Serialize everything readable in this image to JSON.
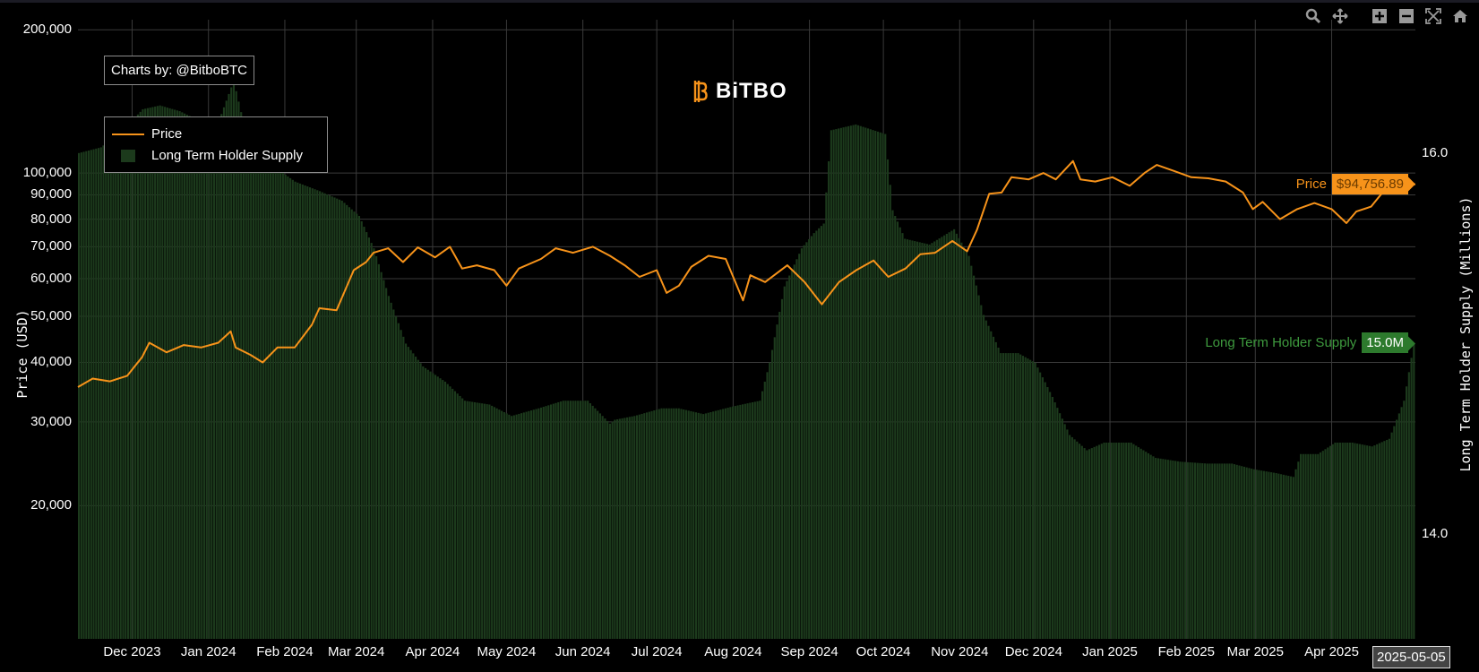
{
  "toolbar": {
    "icons": [
      "zoom-icon",
      "pan-icon",
      "zoom-in-icon",
      "zoom-out-icon",
      "autoscale-icon",
      "reset-axes-icon"
    ]
  },
  "credit": "Charts by: @BitboBTC",
  "brand": {
    "name": "BiTBO"
  },
  "legend": {
    "price": "Price",
    "lths": "Long Term Holder Supply"
  },
  "hover": {
    "price_label": "Price",
    "price_value": "$94,756.89",
    "lths_label": "Long Term Holder Supply",
    "lths_value": "15.0M",
    "date": "2025-05-05"
  },
  "colors": {
    "price": "#f7931a",
    "lths": "#1c3a1c",
    "grid": "#3a3a3a",
    "background": "#000000"
  },
  "chart_data": {
    "type": "line",
    "xlabel": "",
    "ylabel": "Price (USD)",
    "y2label": "Long Term Holder Supply (Millions)",
    "yscale": "log",
    "ylim": [
      10500,
      210000
    ],
    "y2lim": [
      13.45,
      16.7
    ],
    "grid": true,
    "legend_position": "top-left",
    "x_ticks": [
      "Dec 2023",
      "Jan 2024",
      "Feb 2024",
      "Mar 2024",
      "Apr 2024",
      "May 2024",
      "Jun 2024",
      "Jul 2024",
      "Aug 2024",
      "Sep 2024",
      "Oct 2024",
      "Nov 2024",
      "Dec 2024",
      "Jan 2025",
      "Feb 2025",
      "Mar 2025",
      "Apr 2025"
    ],
    "y_ticks": [
      "200,000",
      "100,000",
      "90,000",
      "80,000",
      "70,000",
      "60,000",
      "50,000",
      "40,000",
      "30,000",
      "20,000"
    ],
    "y2_ticks": [
      "16.0",
      "14.0"
    ],
    "x_range": [
      "2023-11-09",
      "2025-05-05"
    ],
    "series": [
      {
        "name": "Price",
        "kind": "line",
        "axis": "left",
        "x": [
          "2023-11-09",
          "2023-11-15",
          "2023-11-22",
          "2023-11-29",
          "2023-12-05",
          "2023-12-08",
          "2023-12-15",
          "2023-12-22",
          "2023-12-29",
          "2024-01-05",
          "2024-01-10",
          "2024-01-12",
          "2024-01-18",
          "2024-01-23",
          "2024-01-29",
          "2024-02-05",
          "2024-02-12",
          "2024-02-15",
          "2024-02-22",
          "2024-02-29",
          "2024-03-05",
          "2024-03-08",
          "2024-03-14",
          "2024-03-20",
          "2024-03-26",
          "2024-04-02",
          "2024-04-08",
          "2024-04-13",
          "2024-04-19",
          "2024-04-26",
          "2024-05-01",
          "2024-05-06",
          "2024-05-15",
          "2024-05-21",
          "2024-05-28",
          "2024-06-05",
          "2024-06-12",
          "2024-06-18",
          "2024-06-24",
          "2024-07-01",
          "2024-07-05",
          "2024-07-10",
          "2024-07-15",
          "2024-07-22",
          "2024-07-29",
          "2024-08-05",
          "2024-08-08",
          "2024-08-14",
          "2024-08-23",
          "2024-08-30",
          "2024-09-06",
          "2024-09-13",
          "2024-09-20",
          "2024-09-27",
          "2024-10-03",
          "2024-10-10",
          "2024-10-16",
          "2024-10-22",
          "2024-10-29",
          "2024-11-04",
          "2024-11-08",
          "2024-11-13",
          "2024-11-18",
          "2024-11-22",
          "2024-11-29",
          "2024-12-05",
          "2024-12-10",
          "2024-12-17",
          "2024-12-20",
          "2024-12-26",
          "2025-01-02",
          "2025-01-09",
          "2025-01-15",
          "2025-01-20",
          "2025-01-27",
          "2025-02-03",
          "2025-02-10",
          "2025-02-17",
          "2025-02-24",
          "2025-02-28",
          "2025-03-04",
          "2025-03-11",
          "2025-03-18",
          "2025-03-25",
          "2025-04-01",
          "2025-04-07",
          "2025-04-11",
          "2025-04-17",
          "2025-04-22",
          "2025-04-28",
          "2025-05-05"
        ],
        "values": [
          35500,
          37000,
          36500,
          37500,
          41000,
          44000,
          42000,
          43500,
          43000,
          44000,
          46500,
          43000,
          41500,
          40000,
          43000,
          43000,
          48000,
          52000,
          51500,
          62500,
          65000,
          68000,
          69500,
          65000,
          69800,
          66500,
          70000,
          63000,
          64000,
          62500,
          58000,
          63000,
          66000,
          69500,
          68000,
          70000,
          67000,
          64000,
          60500,
          62500,
          56000,
          58000,
          63500,
          67000,
          66000,
          54000,
          61000,
          59000,
          64000,
          59000,
          53000,
          59000,
          62500,
          65500,
          60500,
          63000,
          67500,
          68000,
          72000,
          68500,
          76000,
          90500,
          91000,
          98000,
          97000,
          100000,
          97000,
          106000,
          97000,
          96000,
          98000,
          94000,
          100000,
          104000,
          101000,
          98000,
          97500,
          96000,
          91000,
          84000,
          87000,
          80000,
          84000,
          86500,
          84000,
          78500,
          83000,
          85000,
          91500,
          94000,
          94756.89
        ]
      },
      {
        "name": "Long Term Holder Supply",
        "kind": "area-bar",
        "axis": "right",
        "x": [
          "2023-11-09",
          "2023-11-18",
          "2023-11-27",
          "2023-12-05",
          "2023-12-12",
          "2023-12-20",
          "2023-12-28",
          "2024-01-05",
          "2024-01-11",
          "2024-01-17",
          "2024-01-25",
          "2024-02-05",
          "2024-02-15",
          "2024-02-24",
          "2024-03-02",
          "2024-03-08",
          "2024-03-14",
          "2024-03-21",
          "2024-03-28",
          "2024-04-06",
          "2024-04-14",
          "2024-04-24",
          "2024-05-03",
          "2024-05-14",
          "2024-05-24",
          "2024-06-03",
          "2024-06-12",
          "2024-06-14",
          "2024-06-22",
          "2024-07-03",
          "2024-07-10",
          "2024-07-20",
          "2024-08-01",
          "2024-08-12",
          "2024-08-16",
          "2024-08-22",
          "2024-08-29",
          "2024-09-03",
          "2024-09-07",
          "2024-09-10",
          "2024-09-20",
          "2024-10-02",
          "2024-10-05",
          "2024-10-10",
          "2024-10-20",
          "2024-10-30",
          "2024-11-05",
          "2024-11-11",
          "2024-11-18",
          "2024-11-25",
          "2024-12-02",
          "2024-12-09",
          "2024-12-16",
          "2024-12-23",
          "2024-12-30",
          "2025-01-10",
          "2025-01-20",
          "2025-01-30",
          "2025-02-10",
          "2025-02-20",
          "2025-03-01",
          "2025-03-10",
          "2025-03-17",
          "2025-03-20",
          "2025-03-27",
          "2025-04-03",
          "2025-04-10",
          "2025-04-18",
          "2025-04-25",
          "2025-05-01",
          "2025-05-05"
        ],
        "values": [
          16.0,
          16.03,
          16.12,
          16.23,
          16.25,
          16.22,
          16.17,
          16.17,
          16.38,
          16.05,
          15.95,
          15.85,
          15.8,
          15.75,
          15.67,
          15.5,
          15.25,
          15.0,
          14.88,
          14.8,
          14.7,
          14.68,
          14.62,
          14.66,
          14.7,
          14.7,
          14.58,
          14.6,
          14.62,
          14.66,
          14.66,
          14.63,
          14.67,
          14.7,
          14.9,
          15.3,
          15.5,
          15.58,
          15.63,
          16.12,
          16.15,
          16.1,
          15.7,
          15.55,
          15.52,
          15.6,
          15.46,
          15.15,
          14.95,
          14.95,
          14.9,
          14.72,
          14.52,
          14.44,
          14.48,
          14.48,
          14.4,
          14.38,
          14.37,
          14.37,
          14.34,
          14.32,
          14.3,
          14.42,
          14.42,
          14.48,
          14.48,
          14.46,
          14.5,
          14.7,
          15.0
        ]
      }
    ]
  }
}
